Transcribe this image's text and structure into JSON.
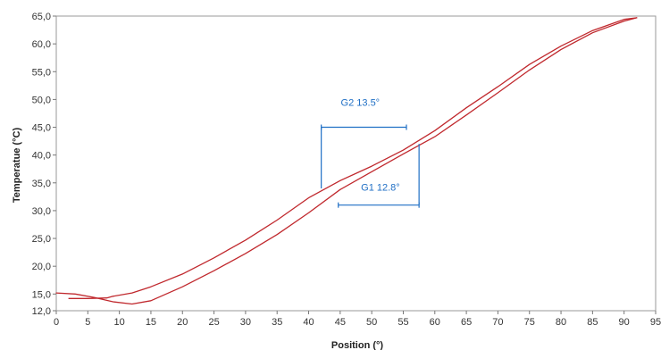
{
  "chart_data": {
    "type": "line",
    "xlabel": "Position (°)",
    "ylabel": "Temperatue (°C)",
    "xlim": [
      0,
      95
    ],
    "ylim": [
      12,
      65
    ],
    "x_ticks": [
      "0",
      "5",
      "10",
      "15",
      "20",
      "25",
      "30",
      "35",
      "40",
      "45",
      "50",
      "55",
      "60",
      "65",
      "70",
      "75",
      "80",
      "85",
      "90",
      "95"
    ],
    "y_ticks": [
      "65,0",
      "60,0",
      "55,0",
      "50,0",
      "45,0",
      "40,0",
      "35,0",
      "30,0",
      "25,0",
      "20,0",
      "15,0",
      "12,0"
    ],
    "x_tick_values": [
      0,
      5,
      10,
      15,
      20,
      25,
      30,
      35,
      40,
      45,
      50,
      55,
      60,
      65,
      70,
      75,
      80,
      85,
      90,
      95
    ],
    "y_tick_values": [
      65,
      60,
      55,
      50,
      45,
      40,
      35,
      30,
      25,
      20,
      15,
      12
    ],
    "grid": false,
    "series": [
      {
        "color": "#c0282d",
        "x": [
          2,
          5,
          8,
          9,
          12,
          15,
          20,
          25,
          30,
          35,
          40,
          45,
          50,
          55,
          60,
          65,
          70,
          75,
          80,
          85,
          90,
          92
        ],
        "y": [
          14.2,
          14.2,
          14.3,
          14.6,
          15.2,
          16.3,
          18.6,
          21.5,
          24.7,
          28.3,
          32.3,
          35.4,
          38.0,
          40.9,
          44.4,
          48.5,
          52.3,
          56.3,
          59.6,
          62.4,
          64.4,
          64.7
        ]
      },
      {
        "color": "#c0282d",
        "x": [
          0,
          3,
          6,
          9,
          12,
          15,
          20,
          25,
          30,
          35,
          40,
          45,
          50,
          55,
          60,
          65,
          70,
          75,
          80,
          85,
          90,
          92
        ],
        "y": [
          15.2,
          15.0,
          14.4,
          13.6,
          13.2,
          13.8,
          16.3,
          19.2,
          22.3,
          25.7,
          29.6,
          33.8,
          37.0,
          40.2,
          43.3,
          47.2,
          51.2,
          55.3,
          59.0,
          62.0,
          64.1,
          64.7
        ]
      }
    ],
    "annotations": [
      {
        "label": "G2 13.5°",
        "x_from": 42,
        "x_to": 55.5,
        "y_bracket": 45,
        "y_end": 34,
        "color": "#1f6fc5"
      },
      {
        "label": "G1 12.8°",
        "x_from": 44.7,
        "x_to": 57.5,
        "y_bracket": 31,
        "y_end": 42,
        "color": "#1f6fc5"
      }
    ]
  }
}
